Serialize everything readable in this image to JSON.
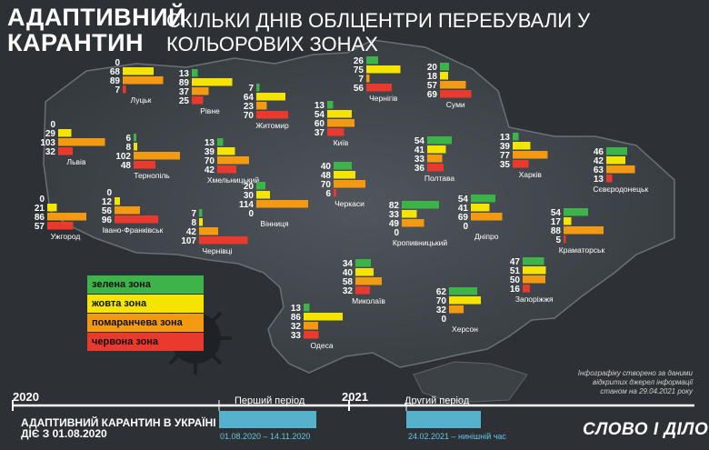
{
  "title_line1": "АДАПТИВНИЙ",
  "title_line2": "КАРАНТИН",
  "subtitle": "СКІЛЬКИ ДНІВ ОБЛЦЕНТРИ ПЕРЕБУВАЛИ У КОЛЬОРОВИХ ЗОНАХ",
  "colors": {
    "green": "#3cb44a",
    "yellow": "#f5e400",
    "orange": "#f39a12",
    "red": "#ea3a2e",
    "timeline": "#5ec8e8"
  },
  "legend": {
    "green": "зелена зона",
    "yellow": "жовта зона",
    "orange": "помаранчева зона",
    "red": "червона зона"
  },
  "chart_data": {
    "type": "bar",
    "series_order": [
      "зелена зона",
      "жовта зона",
      "помаранчева зона",
      "червона зона"
    ],
    "cities": [
      {
        "name": "Луцьк",
        "values": [
          0,
          68,
          89,
          7
        ]
      },
      {
        "name": "Рівне",
        "values": [
          13,
          89,
          37,
          25
        ]
      },
      {
        "name": "Житомир",
        "values": [
          7,
          64,
          23,
          70
        ]
      },
      {
        "name": "Чернігів",
        "values": [
          26,
          75,
          7,
          56
        ]
      },
      {
        "name": "Суми",
        "values": [
          20,
          18,
          57,
          69
        ]
      },
      {
        "name": "Львів",
        "values": [
          0,
          29,
          103,
          32
        ]
      },
      {
        "name": "Тернопіль",
        "values": [
          6,
          8,
          102,
          48
        ]
      },
      {
        "name": "Хмельницький",
        "values": [
          13,
          39,
          70,
          42
        ]
      },
      {
        "name": "Київ",
        "values": [
          13,
          54,
          60,
          37
        ]
      },
      {
        "name": "Полтава",
        "values": [
          54,
          41,
          33,
          36
        ]
      },
      {
        "name": "Харків",
        "values": [
          13,
          39,
          77,
          35
        ]
      },
      {
        "name": "Сєвєродонецьк",
        "values": [
          46,
          42,
          63,
          13
        ]
      },
      {
        "name": "Ужгород",
        "values": [
          0,
          21,
          86,
          57
        ]
      },
      {
        "name": "Івано-Франківськ",
        "values": [
          0,
          12,
          56,
          96
        ]
      },
      {
        "name": "Вінниця",
        "values": [
          20,
          30,
          114,
          0
        ]
      },
      {
        "name": "Черкаси",
        "values": [
          40,
          48,
          70,
          6
        ]
      },
      {
        "name": "Чернівці",
        "values": [
          7,
          8,
          42,
          107
        ]
      },
      {
        "name": "Кропивницький",
        "values": [
          82,
          33,
          49,
          0
        ]
      },
      {
        "name": "Дніпро",
        "values": [
          54,
          41,
          69,
          0
        ]
      },
      {
        "name": "Краматорськ",
        "values": [
          54,
          17,
          88,
          5
        ]
      },
      {
        "name": "Миколаїв",
        "values": [
          34,
          40,
          58,
          32
        ]
      },
      {
        "name": "Запоріжжя",
        "values": [
          47,
          51,
          50,
          16
        ]
      },
      {
        "name": "Одеса",
        "values": [
          13,
          86,
          32,
          33
        ]
      },
      {
        "name": "Херсон",
        "values": [
          62,
          70,
          32,
          0
        ]
      }
    ]
  },
  "footer": {
    "line1": "АДАПТИВНИЙ КАРАНТИН В УКРАЇНІ",
    "line2": "ДІЄ З 01.08.2020",
    "note1": "Інфографіку створено за даними",
    "note2": "відкритих джерел інформації",
    "note3": "станом на 29.04.2021 року",
    "logo": "СЛОВО І ДІЛО"
  },
  "timeline": {
    "year1": "2020",
    "year2": "2021",
    "period1_label": "Перший період",
    "period1_dates": "01.08.2020 – 14.11.2020",
    "period2_label": "Другий період",
    "period2_dates": "24.02.2021 – нинішній час"
  }
}
